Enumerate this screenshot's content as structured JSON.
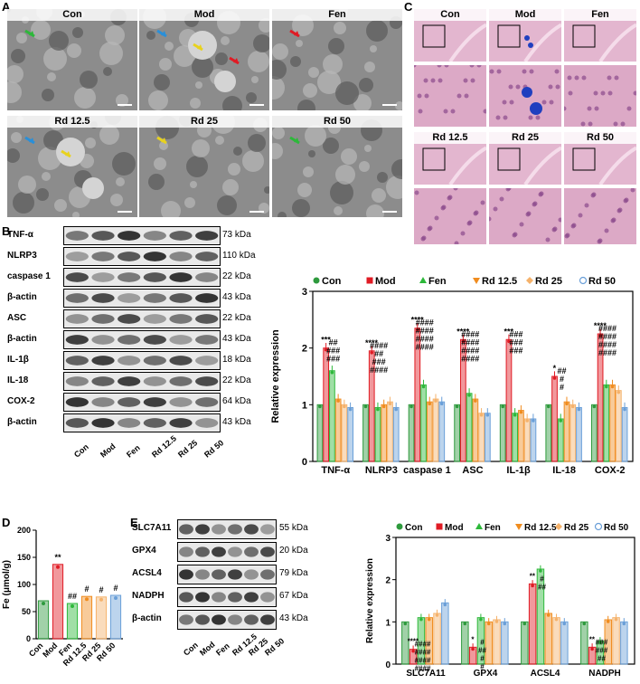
{
  "panels": {
    "A": {
      "label": "A",
      "groups": [
        "Con",
        "Mod",
        "Fen",
        "Rd 12.5",
        "Rd 25",
        "Rd 50"
      ]
    },
    "C": {
      "label": "C",
      "groups": [
        "Con",
        "Mod",
        "Fen",
        "Rd 12.5",
        "Rd 25",
        "Rd 50"
      ]
    },
    "B": {
      "label": "B",
      "lanes": [
        "Con",
        "Mod",
        "Fen",
        "Rd 12.5",
        "Rd 25",
        "Rd 50"
      ],
      "blots": [
        {
          "name": "TNF-α",
          "kda": "73 kDa"
        },
        {
          "name": "NLRP3",
          "kda": "110 kDa"
        },
        {
          "name": "caspase 1",
          "kda": "22 kDa"
        },
        {
          "name": "β-actin",
          "kda": "43 kDa"
        },
        {
          "name": "ASC",
          "kda": "22 kDa"
        },
        {
          "name": "β-actin",
          "kda": "43 kDa"
        },
        {
          "name": "IL-1β",
          "kda": "18 kDa"
        },
        {
          "name": "IL-18",
          "kda": "22 kDa"
        },
        {
          "name": "COX-2",
          "kda": "64 kDa"
        },
        {
          "name": "β-actin",
          "kda": "43 kDa"
        }
      ]
    },
    "D": {
      "label": "D"
    },
    "E": {
      "label": "E",
      "lanes": [
        "Con",
        "Mod",
        "Fen",
        "Rd 12.5",
        "Rd 25",
        "Rd 50"
      ],
      "blots": [
        {
          "name": "SLC7A11",
          "kda": "55 kDa"
        },
        {
          "name": "GPX4",
          "kda": "20 kDa"
        },
        {
          "name": "ACSL4",
          "kda": "79 kDa"
        },
        {
          "name": "NADPH",
          "kda": "67 kDa"
        },
        {
          "name": "β-actin",
          "kda": "43 kDa"
        }
      ]
    }
  },
  "colors": {
    "Con": "#2e9a3d",
    "Mod": "#e01b24",
    "Fen": "#2db83a",
    "Rd 12.5": "#f08c1e",
    "Rd 25": "#f5b26b",
    "Rd 50": "#6a9fd8"
  },
  "chart_data": [
    {
      "id": "B-chart",
      "type": "bar",
      "title": "",
      "ylabel": "Relative expression",
      "xlabel": "",
      "ylim": [
        0,
        3
      ],
      "yticks": [
        0,
        1,
        2,
        3
      ],
      "legend": "top",
      "categories": [
        "TNF-α",
        "NLRP3",
        "caspase 1",
        "ASC",
        "IL-1β",
        "IL-18",
        "COX-2"
      ],
      "series": [
        {
          "name": "Con",
          "values": [
            1.0,
            1.0,
            1.0,
            1.0,
            1.0,
            1.0,
            1.0
          ]
        },
        {
          "name": "Mod",
          "values": [
            2.0,
            1.95,
            2.35,
            2.15,
            2.15,
            1.5,
            2.25
          ]
        },
        {
          "name": "Fen",
          "values": [
            1.6,
            0.95,
            1.35,
            1.2,
            0.85,
            0.75,
            1.35
          ]
        },
        {
          "name": "Rd 12.5",
          "values": [
            1.1,
            1.0,
            1.05,
            1.1,
            0.9,
            1.05,
            1.35
          ]
        },
        {
          "name": "Rd 25",
          "values": [
            1.0,
            1.05,
            1.1,
            0.85,
            0.75,
            1.0,
            1.25
          ]
        },
        {
          "name": "Rd 50",
          "values": [
            0.95,
            0.95,
            1.05,
            0.85,
            0.75,
            0.95,
            0.95
          ]
        }
      ],
      "annotations": [
        {
          "category": "TNF-α",
          "marks": [
            "***",
            "##",
            "###",
            "###"
          ]
        },
        {
          "category": "NLRP3",
          "marks": [
            "****",
            "####",
            "##",
            "###",
            "####"
          ]
        },
        {
          "category": "caspase 1",
          "marks": [
            "****",
            "####",
            "####",
            "####",
            "####"
          ]
        },
        {
          "category": "ASC",
          "marks": [
            "****",
            "####",
            "####",
            "####",
            "####"
          ]
        },
        {
          "category": "IL-1β",
          "marks": [
            "***",
            "###",
            "###",
            "###"
          ]
        },
        {
          "category": "IL-18",
          "marks": [
            "*",
            "##",
            "#",
            "#"
          ]
        },
        {
          "category": "COX-2",
          "marks": [
            "****",
            "####",
            "####",
            "####",
            "####"
          ]
        }
      ]
    },
    {
      "id": "D-chart",
      "type": "bar",
      "title": "",
      "ylabel": "Fe (μmol/g)",
      "xlabel": "",
      "ylim": [
        0,
        200
      ],
      "yticks": [
        0,
        50,
        100,
        150,
        200
      ],
      "categories": [
        "Con",
        "Mod",
        "Fen",
        "Rd 12.5",
        "Rd 25",
        "Rd 50"
      ],
      "values": [
        70,
        137,
        65,
        78,
        77,
        80
      ],
      "annotations": [
        "",
        "**",
        "##",
        "#",
        "#",
        "#"
      ]
    },
    {
      "id": "E-chart",
      "type": "bar",
      "title": "",
      "ylabel": "Relative expression",
      "xlabel": "",
      "ylim": [
        0,
        3
      ],
      "yticks": [
        0,
        1,
        2,
        3
      ],
      "legend": "top",
      "categories": [
        "SLC7A11",
        "GPX4",
        "ACSL4",
        "NADPH"
      ],
      "series": [
        {
          "name": "Con",
          "values": [
            1.0,
            1.0,
            1.0,
            1.0
          ]
        },
        {
          "name": "Mod",
          "values": [
            0.35,
            0.4,
            1.9,
            0.4
          ]
        },
        {
          "name": "Fen",
          "values": [
            1.1,
            1.1,
            2.25,
            0.55
          ]
        },
        {
          "name": "Rd 12.5",
          "values": [
            1.1,
            1.0,
            1.2,
            1.05
          ]
        },
        {
          "name": "Rd 25",
          "values": [
            1.2,
            1.05,
            1.1,
            1.1
          ]
        },
        {
          "name": "Rd 50",
          "values": [
            1.45,
            1.0,
            1.0,
            1.0
          ]
        }
      ],
      "annotations": [
        {
          "category": "SLC7A11",
          "marks": [
            "****",
            "####",
            "####",
            "####",
            "####"
          ]
        },
        {
          "category": "GPX4",
          "marks": [
            "*",
            "#",
            "##",
            "#",
            "#"
          ]
        },
        {
          "category": "ACSL4",
          "marks": [
            "**",
            "#",
            "##"
          ]
        },
        {
          "category": "NADPH",
          "marks": [
            "**",
            "###",
            "###",
            "##"
          ]
        }
      ]
    }
  ]
}
